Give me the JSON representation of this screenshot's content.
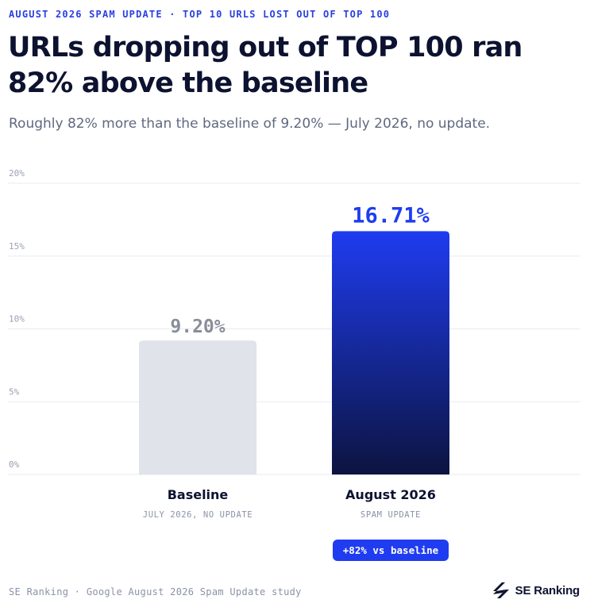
{
  "kicker": "AUGUST 2026 SPAM UPDATE · TOP 10 URLS LOST OUT OF TOP 100",
  "title": "URLs dropping out of TOP 100 ran 82% above the baseline",
  "subtitle": "Roughly 82% more than the baseline of 9.20% — July 2026, no update.",
  "chart_data": {
    "type": "bar",
    "categories": [
      "Baseline",
      "August 2026"
    ],
    "category_sublabels": [
      "JULY 2026, NO UPDATE",
      "SPAM UPDATE"
    ],
    "values": [
      9.2,
      16.71
    ],
    "value_labels": [
      "9.20%",
      "16.71%"
    ],
    "ylim": [
      0,
      20
    ],
    "yticks": [
      0,
      5,
      10,
      15,
      20
    ],
    "ytick_labels": [
      "0%",
      "5%",
      "10%",
      "15%",
      "20%"
    ],
    "grid": true,
    "bar_colors": [
      "#e1e3ea",
      "#1f3cf0"
    ],
    "value_label_colors": [
      "#8a8d99",
      "#1f3cf0"
    ],
    "annotation": "+82% vs baseline"
  },
  "footer": {
    "source": "SE Ranking · Google August 2026 Spam Update study",
    "brand": "SE Ranking"
  },
  "colors": {
    "accent": "#1f3cf0",
    "accent_dark": "#0c1440",
    "text": "#0c1230",
    "muted": "#8a92a6"
  }
}
